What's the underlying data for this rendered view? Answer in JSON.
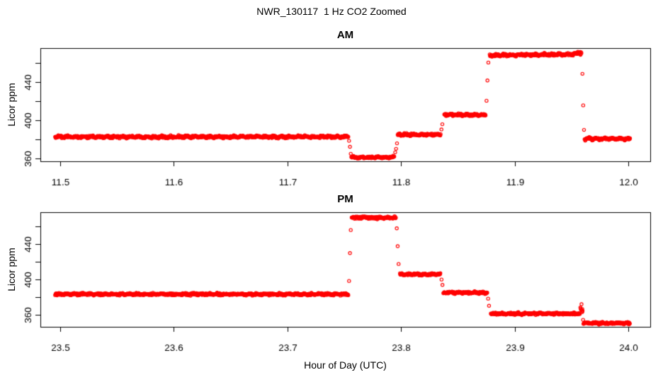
{
  "title": "NWR_130117  1 Hz CO2 Zoomed",
  "xlabel": "Hour of Day (UTC)",
  "ylabel": "Licor ppm",
  "sample_rate_hz": 1,
  "colors": {
    "points": "#ff0000",
    "axis": "#000000",
    "background": "#ffffff"
  },
  "marker": "open-circle",
  "chart_data": [
    {
      "type": "scatter",
      "panel_title": "AM",
      "xlim": [
        11.4825,
        12.0193
      ],
      "ylim": [
        357.4,
        475.9
      ],
      "grid": false,
      "legend": null,
      "xticks": [
        {
          "value": 11.5,
          "label": "11.5"
        },
        {
          "value": 11.6,
          "label": "11.6"
        },
        {
          "value": 11.7,
          "label": "11.7"
        },
        {
          "value": 11.8,
          "label": "11.8"
        },
        {
          "value": 11.9,
          "label": "11.9"
        },
        {
          "value": 12.0,
          "label": "12.0"
        }
      ],
      "yticks": [
        {
          "value": 360,
          "label": "360"
        },
        {
          "value": 380,
          "label": ""
        },
        {
          "value": 400,
          "label": "400"
        },
        {
          "value": 420,
          "label": ""
        },
        {
          "value": 440,
          "label": "440"
        },
        {
          "value": 460,
          "label": ""
        }
      ],
      "segments": [
        {
          "t0": 11.4955,
          "t1": 11.7538,
          "level": 383.0,
          "level_end": 383.0,
          "noise": 1.3
        },
        {
          "t0": 11.7562,
          "t1": 11.7942,
          "level": 361.5,
          "level_end": 361.5,
          "noise": 1.2
        },
        {
          "t0": 11.797,
          "t1": 11.8348,
          "level": 385.3,
          "level_end": 385.3,
          "noise": 1.3
        },
        {
          "t0": 11.838,
          "t1": 11.8745,
          "level": 406.0,
          "level_end": 406.0,
          "noise": 1.3
        },
        {
          "t0": 11.878,
          "t1": 11.954,
          "level": 468.3,
          "level_end": 469.5,
          "noise": 1.4
        },
        {
          "t0": 11.954,
          "t1": 11.9588,
          "level": 470.5,
          "level_end": 471.0,
          "noise": 1.8
        },
        {
          "t0": 11.9615,
          "t1": 12.0015,
          "level": 381.0,
          "level_end": 381.0,
          "noise": 1.3
        }
      ],
      "transition_points": [
        {
          "t": 11.7542,
          "v": 378.8
        },
        {
          "t": 11.755,
          "v": 372.6
        },
        {
          "t": 11.7557,
          "v": 365.3
        },
        {
          "t": 11.7948,
          "v": 366.8
        },
        {
          "t": 11.7956,
          "v": 370.5
        },
        {
          "t": 11.7964,
          "v": 376.2
        },
        {
          "t": 11.8355,
          "v": 390.8
        },
        {
          "t": 11.8363,
          "v": 396.2
        },
        {
          "t": 11.8752,
          "v": 420.8
        },
        {
          "t": 11.876,
          "v": 442.0
        },
        {
          "t": 11.8768,
          "v": 460.8
        },
        {
          "t": 11.9596,
          "v": 449.0
        },
        {
          "t": 11.9603,
          "v": 416.0
        },
        {
          "t": 11.961,
          "v": 390.3
        }
      ]
    },
    {
      "type": "scatter",
      "panel_title": "PM",
      "xlim": [
        23.4825,
        24.0193
      ],
      "ylim": [
        346.4,
        476.0
      ],
      "grid": false,
      "legend": null,
      "xticks": [
        {
          "value": 23.5,
          "label": "23.5"
        },
        {
          "value": 23.6,
          "label": "23.6"
        },
        {
          "value": 23.7,
          "label": "23.7"
        },
        {
          "value": 23.8,
          "label": "23.8"
        },
        {
          "value": 23.9,
          "label": "23.9"
        },
        {
          "value": 24.0,
          "label": "24.0"
        }
      ],
      "yticks": [
        {
          "value": 360,
          "label": "360"
        },
        {
          "value": 380,
          "label": ""
        },
        {
          "value": 400,
          "label": "400"
        },
        {
          "value": 420,
          "label": ""
        },
        {
          "value": 440,
          "label": "440"
        },
        {
          "value": 460,
          "label": ""
        }
      ],
      "segments": [
        {
          "t0": 23.4955,
          "t1": 23.7538,
          "level": 383.3,
          "level_end": 383.3,
          "noise": 1.3
        },
        {
          "t0": 23.7565,
          "t1": 23.7955,
          "level": 469.8,
          "level_end": 469.8,
          "noise": 1.4
        },
        {
          "t0": 23.799,
          "t1": 23.8348,
          "level": 405.8,
          "level_end": 405.8,
          "noise": 1.3
        },
        {
          "t0": 23.8372,
          "t1": 23.876,
          "level": 385.0,
          "level_end": 385.0,
          "noise": 1.3
        },
        {
          "t0": 23.879,
          "t1": 23.9575,
          "level": 361.3,
          "level_end": 361.3,
          "noise": 1.3
        },
        {
          "t0": 23.9578,
          "t1": 23.9598,
          "level": 367.0,
          "level_end": 364.0,
          "noise": 2.0
        },
        {
          "t0": 23.9605,
          "t1": 24.0015,
          "level": 350.5,
          "level_end": 350.5,
          "noise": 1.2
        }
      ],
      "transition_points": [
        {
          "t": 23.7542,
          "v": 398.3
        },
        {
          "t": 23.755,
          "v": 429.8
        },
        {
          "t": 23.7557,
          "v": 455.9
        },
        {
          "t": 23.7962,
          "v": 457.8
        },
        {
          "t": 23.797,
          "v": 437.6
        },
        {
          "t": 23.7978,
          "v": 417.5
        },
        {
          "t": 23.8356,
          "v": 399.9
        },
        {
          "t": 23.8364,
          "v": 393.8
        },
        {
          "t": 23.8766,
          "v": 378.3
        },
        {
          "t": 23.8774,
          "v": 370.2
        },
        {
          "t": 23.9588,
          "v": 372.0
        },
        {
          "t": 23.9595,
          "v": 366.5
        },
        {
          "t": 23.9602,
          "v": 354.3
        }
      ]
    }
  ]
}
